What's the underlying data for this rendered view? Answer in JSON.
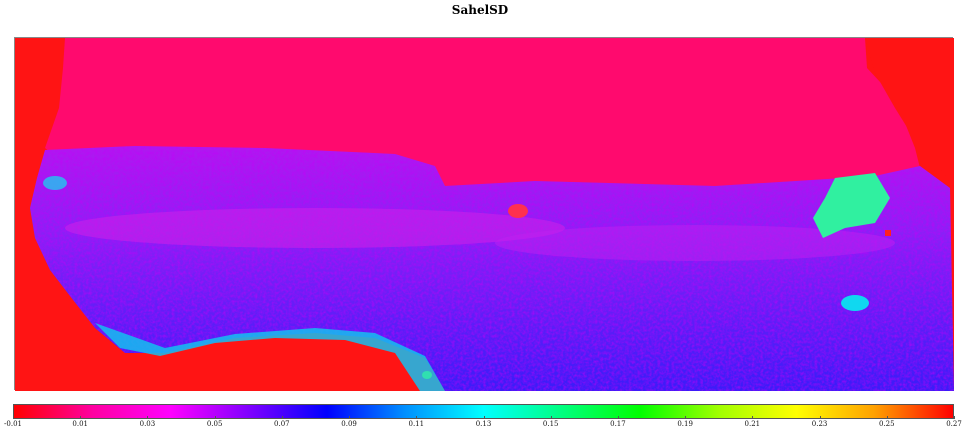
{
  "title": "SahelSD",
  "colorbar": {
    "tick_labels": [
      "-0.01",
      "0.01",
      "0.03",
      "0.05",
      "0.07",
      "0.09",
      "0.11",
      "0.13",
      "0.15",
      "0.17",
      "0.19",
      "0.21",
      "0.23",
      "0.25",
      "0.27"
    ],
    "stops": [
      "#ff0000",
      "#ff00a0",
      "#ff00ff",
      "#8000ff",
      "#0000ff",
      "#0090ff",
      "#00ffff",
      "#00ff80",
      "#00ff00",
      "#a0ff00",
      "#ffff00",
      "#ffa000",
      "#ff0000"
    ]
  },
  "map": {
    "colors": {
      "ocean": "#ff1010",
      "desert": "#ff0a70",
      "sahel_mix": "#e018e0",
      "savanna": "#4028f0",
      "dense": "#1818ff",
      "cyan_patch": "#10c8f0",
      "green_patch": "#30f0a0"
    }
  }
}
